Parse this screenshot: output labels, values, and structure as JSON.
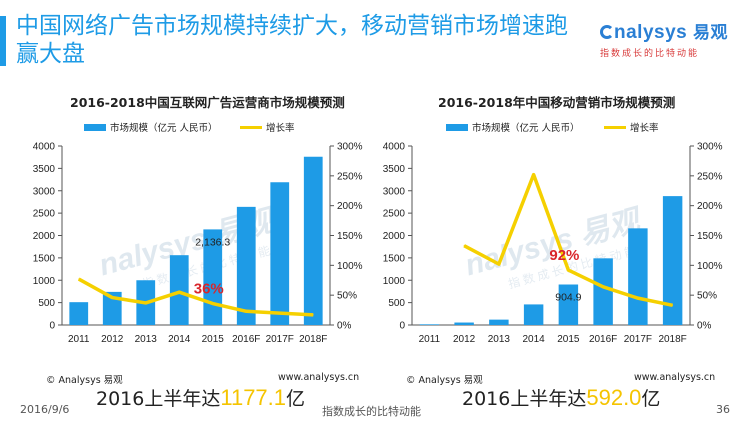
{
  "header": {
    "title": "中国网络广告市场规模持续扩大，移动营销市场增速跑赢大盘",
    "logo_main": "nalysys",
    "logo_cn": "易观",
    "logo_sub": "指数成长的比特动能"
  },
  "watermark": {
    "main": "nalysys 易观",
    "sub": "指数成长的比特动能"
  },
  "chart_data": [
    {
      "type": "bar",
      "title": "2016-2018中国互联网广告运营商市场规模预测",
      "categories": [
        "2011",
        "2012",
        "2013",
        "2014",
        "2015",
        "2016F",
        "2017F",
        "2018F"
      ],
      "series": [
        {
          "name": "市场规模（亿元 人民币）",
          "type": "bar",
          "axis": "left",
          "values": [
            510,
            740,
            1000,
            1560,
            2136.3,
            2640,
            3190,
            3760
          ]
        },
        {
          "name": "增长率",
          "type": "line",
          "axis": "right",
          "values": [
            77,
            46,
            37,
            55,
            36,
            23,
            20,
            17
          ]
        }
      ],
      "yleft_ticks": [
        "0",
        "500",
        "1000",
        "1500",
        "2000",
        "2500",
        "3000",
        "3500",
        "4000"
      ],
      "yleft_lim": [
        0,
        4000
      ],
      "yright_ticks": [
        "0%",
        "50%",
        "100%",
        "150%",
        "200%",
        "250%",
        "300%"
      ],
      "yright_lim": [
        0,
        300
      ],
      "annotations": [
        {
          "text": "2,136.3",
          "category": "2015",
          "value": 2136.3,
          "axis": "left",
          "color": "#222222"
        },
        {
          "text": "36%",
          "category": "2015",
          "value": 36,
          "axis": "right",
          "color": "#d9262b"
        }
      ],
      "colors": {
        "bar": "#1e9be6",
        "line": "#f5d000"
      },
      "legend": "top"
    },
    {
      "type": "bar",
      "title": "2016-2018年中国移动营销市场规模预测",
      "categories": [
        "2011",
        "2012",
        "2013",
        "2014",
        "2015",
        "2016F",
        "2017F",
        "2018F"
      ],
      "series": [
        {
          "name": "市场规模（亿元 人民币）",
          "type": "bar",
          "axis": "left",
          "values": [
            15,
            55,
            120,
            460,
            904.9,
            1490,
            2160,
            2880
          ]
        },
        {
          "name": "增长率",
          "type": "line",
          "axis": "right",
          "values": [
            null,
            133,
            102,
            252,
            92,
            64,
            45,
            33
          ]
        }
      ],
      "yleft_ticks": [
        "0",
        "500",
        "1000",
        "1500",
        "2000",
        "2500",
        "3000",
        "3500",
        "4000"
      ],
      "yleft_lim": [
        0,
        4000
      ],
      "yright_ticks": [
        "0%",
        "50%",
        "100%",
        "150%",
        "200%",
        "250%",
        "300%"
      ],
      "yright_lim": [
        0,
        300
      ],
      "annotations": [
        {
          "text": "904.9",
          "category": "2015",
          "value": 904.9,
          "axis": "left",
          "color": "#222222"
        },
        {
          "text": "92%",
          "category": "2015",
          "value": 92,
          "axis": "right",
          "color": "#d9262b"
        }
      ],
      "colors": {
        "bar": "#1e9be6",
        "line": "#f5d000"
      },
      "legend": "top"
    }
  ],
  "sources": [
    {
      "left": "© Analysys 易观",
      "right": "www.analysys.cn"
    },
    {
      "left": "© Analysys 易观",
      "right": "www.analysys.cn"
    }
  ],
  "highlights": [
    {
      "prefix": "2016上半年达",
      "number": "1177.1",
      "suffix": "亿"
    },
    {
      "prefix": "2016上半年达",
      "number": "592.0",
      "suffix": "亿"
    }
  ],
  "footer": {
    "date": "2016/9/6",
    "slogan": "指数成长的比特动能",
    "page": "36"
  }
}
